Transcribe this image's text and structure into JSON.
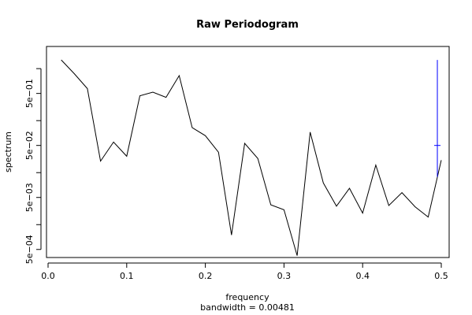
{
  "chart_data": {
    "type": "line",
    "title": "Raw Periodogram",
    "xlabel": "frequency",
    "xsublabel": "bandwidth = 0.00481",
    "ylabel": "spectrum",
    "xlim": [
      -0.002,
      0.51
    ],
    "ylim": [
      0.00035,
      4.0
    ],
    "yscale": "log",
    "grid": false,
    "xticks": [
      {
        "value": 0.0,
        "label": "0.0"
      },
      {
        "value": 0.1,
        "label": "0.1"
      },
      {
        "value": 0.2,
        "label": "0.2"
      },
      {
        "value": 0.3,
        "label": "0.3"
      },
      {
        "value": 0.4,
        "label": "0.4"
      },
      {
        "value": 0.5,
        "label": "0.5"
      }
    ],
    "yticks_labeled": [
      {
        "value": 0.0005,
        "label": "5e−04"
      },
      {
        "value": 0.005,
        "label": "5e−03"
      },
      {
        "value": 0.05,
        "label": "5e−02"
      },
      {
        "value": 0.5,
        "label": "5e−01"
      }
    ],
    "yticks_minor": [
      0.0015,
      0.015,
      0.15,
      1.5
    ],
    "series": [
      {
        "color": "#000000",
        "x": [
          0.0167,
          0.0333,
          0.05,
          0.0667,
          0.0833,
          0.1,
          0.1167,
          0.1333,
          0.15,
          0.1667,
          0.1833,
          0.2,
          0.2167,
          0.2333,
          0.25,
          0.2667,
          0.2833,
          0.3,
          0.3167,
          0.3333,
          0.35,
          0.3667,
          0.3833,
          0.4,
          0.4167,
          0.4333,
          0.45,
          0.4667,
          0.4833,
          0.5
        ],
        "y": [
          2.2,
          1.2,
          0.62,
          0.025,
          0.058,
          0.031,
          0.45,
          0.53,
          0.42,
          1.1,
          0.11,
          0.077,
          0.037,
          0.00095,
          0.055,
          0.028,
          0.0036,
          0.0029,
          0.00038,
          0.09,
          0.0095,
          0.0034,
          0.0075,
          0.0025,
          0.021,
          0.0035,
          0.0062,
          0.0033,
          0.0021,
          0.026
        ]
      }
    ],
    "ci_marker": {
      "color": "#0000ff",
      "x": 0.495,
      "y_center": 0.05,
      "y_low": 0.0125,
      "y_high": 2.2
    }
  }
}
